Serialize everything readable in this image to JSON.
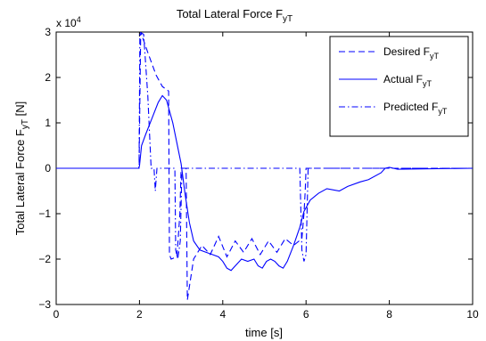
{
  "chart_data": {
    "type": "line",
    "title": "Total Lateral Force F",
    "title_sub": "yT",
    "xlabel": "time [s]",
    "ylabel": "Total Lateral Force F",
    "ylabel_sub": "yT",
    "ylabel_unit": " [N]",
    "y_multiplier": "x 10",
    "y_multiplier_exp": "4",
    "xlim": [
      0,
      10
    ],
    "ylim": [
      -3,
      3
    ],
    "xticks": [
      0,
      2,
      4,
      6,
      8,
      10
    ],
    "yticks": [
      -3,
      -2,
      -1,
      0,
      1,
      2,
      3
    ],
    "xtick_labels": [
      "0",
      "2",
      "4",
      "6",
      "8",
      "10"
    ],
    "ytick_labels": [
      "−3",
      "−2",
      "−1",
      "0",
      "1",
      "2",
      "3"
    ],
    "grid": false,
    "legend_position": "top-right",
    "series_color": "#0000ff",
    "series": [
      {
        "name": "Desired F",
        "name_sub": "yT",
        "dash": "dashed",
        "points": [
          [
            0,
            0
          ],
          [
            1.99,
            0
          ],
          [
            2.03,
            3.0
          ],
          [
            2.2,
            2.55
          ],
          [
            2.4,
            2.05
          ],
          [
            2.55,
            1.8
          ],
          [
            2.7,
            1.7
          ],
          [
            2.72,
            -1.9
          ],
          [
            2.76,
            -2.0
          ],
          [
            2.9,
            -1.95
          ],
          [
            2.97,
            -1.0
          ],
          [
            3.0,
            0
          ],
          [
            3.12,
            0
          ],
          [
            3.15,
            -2.9
          ],
          [
            3.3,
            -2.0
          ],
          [
            3.5,
            -1.7
          ],
          [
            3.7,
            -1.9
          ],
          [
            3.9,
            -1.5
          ],
          [
            4.1,
            -1.95
          ],
          [
            4.3,
            -1.6
          ],
          [
            4.5,
            -1.85
          ],
          [
            4.7,
            -1.55
          ],
          [
            4.9,
            -1.9
          ],
          [
            5.1,
            -1.6
          ],
          [
            5.3,
            -1.85
          ],
          [
            5.5,
            -1.55
          ],
          [
            5.7,
            -1.7
          ],
          [
            5.9,
            -1.55
          ],
          [
            5.95,
            -1.0
          ],
          [
            5.98,
            -0.5
          ],
          [
            6.0,
            0
          ],
          [
            10,
            0
          ]
        ]
      },
      {
        "name": "Actual F",
        "name_sub": "yT",
        "dash": "solid",
        "points": [
          [
            0,
            0
          ],
          [
            1.98,
            0
          ],
          [
            2.0,
            0.05
          ],
          [
            2.05,
            0.5
          ],
          [
            2.15,
            0.75
          ],
          [
            2.3,
            1.1
          ],
          [
            2.45,
            1.45
          ],
          [
            2.55,
            1.6
          ],
          [
            2.65,
            1.5
          ],
          [
            2.8,
            1.0
          ],
          [
            3.0,
            0.1
          ],
          [
            3.1,
            -0.6
          ],
          [
            3.2,
            -1.2
          ],
          [
            3.3,
            -1.6
          ],
          [
            3.45,
            -1.8
          ],
          [
            3.6,
            -1.85
          ],
          [
            3.75,
            -1.9
          ],
          [
            3.9,
            -1.95
          ],
          [
            4.0,
            -2.05
          ],
          [
            4.1,
            -2.2
          ],
          [
            4.2,
            -2.25
          ],
          [
            4.3,
            -2.15
          ],
          [
            4.45,
            -2.0
          ],
          [
            4.6,
            -2.05
          ],
          [
            4.75,
            -2.0
          ],
          [
            4.85,
            -2.15
          ],
          [
            4.95,
            -2.2
          ],
          [
            5.05,
            -2.05
          ],
          [
            5.15,
            -2.0
          ],
          [
            5.25,
            -2.05
          ],
          [
            5.35,
            -2.15
          ],
          [
            5.45,
            -2.2
          ],
          [
            5.55,
            -2.05
          ],
          [
            5.7,
            -1.7
          ],
          [
            5.85,
            -1.3
          ],
          [
            5.95,
            -0.95
          ],
          [
            6.1,
            -0.7
          ],
          [
            6.3,
            -0.55
          ],
          [
            6.5,
            -0.45
          ],
          [
            6.8,
            -0.5
          ],
          [
            7.0,
            -0.4
          ],
          [
            7.3,
            -0.3
          ],
          [
            7.5,
            -0.25
          ],
          [
            7.8,
            -0.1
          ],
          [
            7.9,
            0
          ],
          [
            8.0,
            0.02
          ],
          [
            8.2,
            -0.02
          ],
          [
            10,
            0
          ]
        ]
      },
      {
        "name": "Predicted F",
        "name_sub": "yT",
        "dash": "dashdot",
        "points": [
          [
            0,
            0
          ],
          [
            1.99,
            0
          ],
          [
            2.01,
            3.0
          ],
          [
            2.1,
            2.95
          ],
          [
            2.2,
            1.6
          ],
          [
            2.28,
            0
          ],
          [
            2.35,
            0
          ],
          [
            2.38,
            -0.5
          ],
          [
            2.42,
            0
          ],
          [
            2.7,
            0
          ],
          [
            2.85,
            0
          ],
          [
            2.87,
            -1.8
          ],
          [
            2.92,
            -2.0
          ],
          [
            2.98,
            -1.6
          ],
          [
            3.02,
            0
          ],
          [
            3.2,
            0
          ],
          [
            3.6,
            0
          ],
          [
            4.0,
            0
          ],
          [
            5.0,
            0
          ],
          [
            5.85,
            0
          ],
          [
            5.9,
            -1.8
          ],
          [
            5.95,
            -2.05
          ],
          [
            6.0,
            -1.9
          ],
          [
            6.05,
            0
          ],
          [
            10,
            0
          ]
        ]
      }
    ]
  }
}
